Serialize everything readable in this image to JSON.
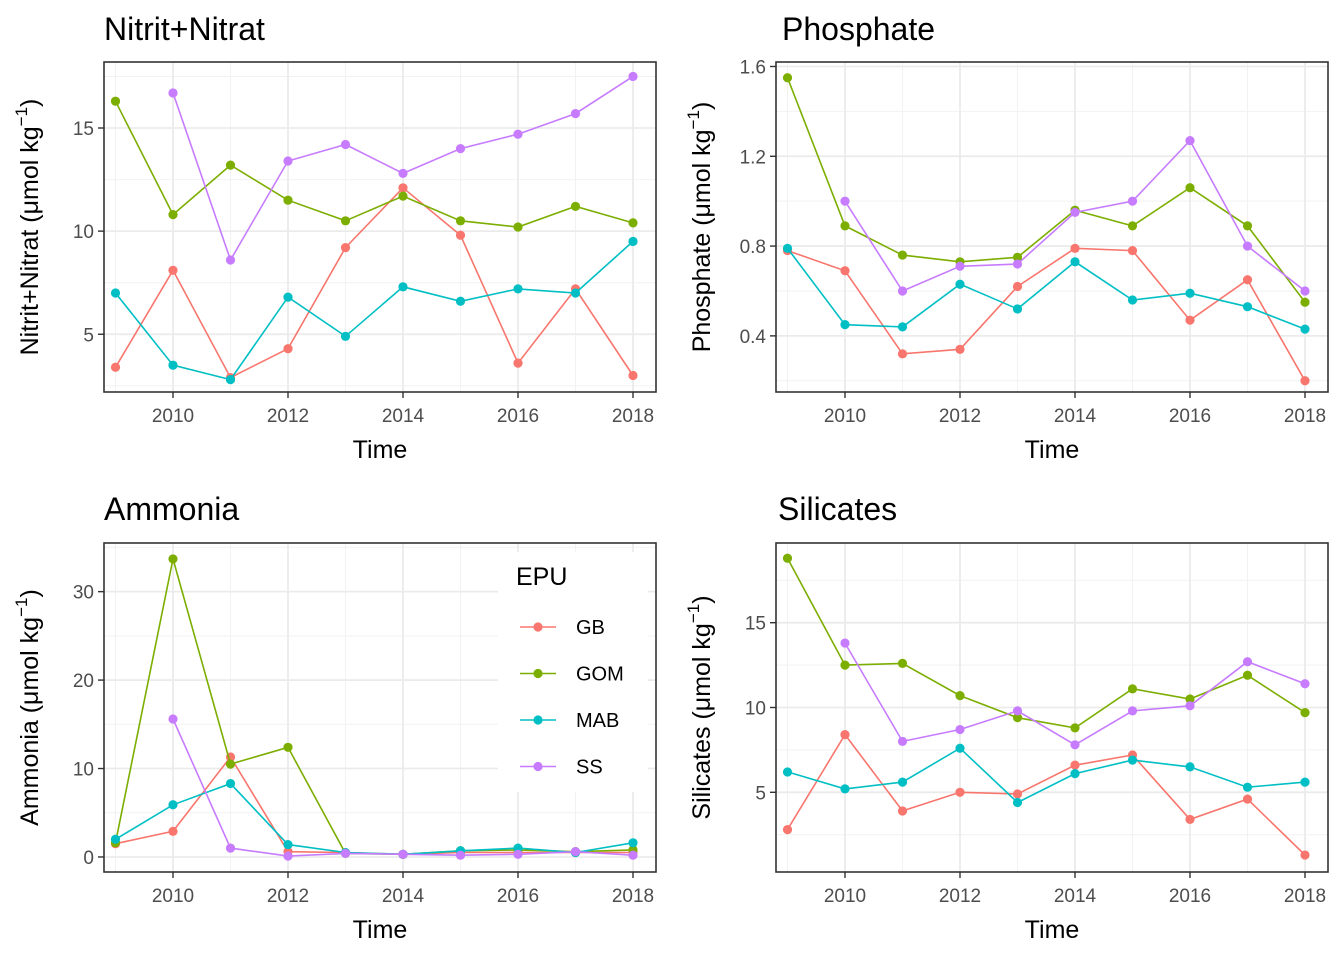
{
  "colors": {
    "GB": "#F8766D",
    "GOM": "#7CAE00",
    "MAB": "#00BFC4",
    "SS": "#C77CFF"
  },
  "legend": {
    "title": "EPU",
    "items": [
      "GB",
      "GOM",
      "MAB",
      "SS"
    ],
    "placement": "inside top-right of Ammonia panel"
  },
  "chart_data": [
    {
      "type": "line",
      "title": "Nitrit+Nitrat",
      "xlabel": "Time",
      "ylabel": "Nitrit+Nitrat (μmol kg⁻¹)",
      "xlim": [
        2008.8,
        2018.4
      ],
      "ylim": [
        2.2,
        18.2
      ],
      "xticks": [
        2010,
        2012,
        2014,
        2016,
        2018
      ],
      "yticks": [
        5,
        10,
        15
      ],
      "grid": true,
      "series": [
        {
          "name": "GB",
          "x": [
            2009,
            2010,
            2011,
            2012,
            2013,
            2014,
            2015,
            2016,
            2017,
            2018
          ],
          "values": [
            3.4,
            8.1,
            2.9,
            4.3,
            9.2,
            12.1,
            9.8,
            3.6,
            7.2,
            3.0
          ]
        },
        {
          "name": "GOM",
          "x": [
            2009,
            2010,
            2011,
            2012,
            2013,
            2014,
            2015,
            2016,
            2017,
            2018
          ],
          "values": [
            16.3,
            10.8,
            13.2,
            11.5,
            10.5,
            11.7,
            10.5,
            10.2,
            11.2,
            10.4
          ]
        },
        {
          "name": "MAB",
          "x": [
            2009,
            2010,
            2011,
            2012,
            2013,
            2014,
            2015,
            2016,
            2017,
            2018
          ],
          "values": [
            7.0,
            3.5,
            2.8,
            6.8,
            4.9,
            7.3,
            6.6,
            7.2,
            7.0,
            9.5
          ]
        },
        {
          "name": "SS",
          "x": [
            2010,
            2011,
            2012,
            2013,
            2014,
            2015,
            2016,
            2017,
            2018
          ],
          "values": [
            16.7,
            8.6,
            13.4,
            14.2,
            12.8,
            14.0,
            14.7,
            15.7,
            17.5
          ]
        }
      ]
    },
    {
      "type": "line",
      "title": "Phosphate",
      "xlabel": "Time",
      "ylabel": "Phosphate (μmol kg⁻¹)",
      "xlim": [
        2008.8,
        2018.4
      ],
      "ylim": [
        0.15,
        1.62
      ],
      "xticks": [
        2010,
        2012,
        2014,
        2016,
        2018
      ],
      "yticks": [
        0.4,
        0.8,
        1.2,
        1.6
      ],
      "yticklabels": [
        "0.4",
        "0.8",
        "1.2",
        "1.6"
      ],
      "grid": true,
      "series": [
        {
          "name": "GB",
          "x": [
            2009,
            2010,
            2011,
            2012,
            2013,
            2014,
            2015,
            2016,
            2017,
            2018
          ],
          "values": [
            0.78,
            0.69,
            0.32,
            0.34,
            0.62,
            0.79,
            0.78,
            0.47,
            0.65,
            0.2
          ]
        },
        {
          "name": "GOM",
          "x": [
            2009,
            2010,
            2011,
            2012,
            2013,
            2014,
            2015,
            2016,
            2017,
            2018
          ],
          "values": [
            1.55,
            0.89,
            0.76,
            0.73,
            0.75,
            0.96,
            0.89,
            1.06,
            0.89,
            0.55
          ]
        },
        {
          "name": "MAB",
          "x": [
            2009,
            2010,
            2011,
            2012,
            2013,
            2014,
            2015,
            2016,
            2017,
            2018
          ],
          "values": [
            0.79,
            0.45,
            0.44,
            0.63,
            0.52,
            0.73,
            0.56,
            0.59,
            0.53,
            0.43
          ]
        },
        {
          "name": "SS",
          "x": [
            2010,
            2011,
            2012,
            2013,
            2014,
            2015,
            2016,
            2017,
            2018
          ],
          "values": [
            1.0,
            0.6,
            0.71,
            0.72,
            0.95,
            1.0,
            1.27,
            0.8,
            0.6
          ]
        }
      ]
    },
    {
      "type": "line",
      "title": "Ammonia",
      "xlabel": "Time",
      "ylabel": "Ammonia (μmol kg⁻¹)",
      "xlim": [
        2008.8,
        2018.4
      ],
      "ylim": [
        -1.7,
        35.5
      ],
      "xticks": [
        2010,
        2012,
        2014,
        2016,
        2018
      ],
      "yticks": [
        0,
        10,
        20,
        30
      ],
      "grid": true,
      "series": [
        {
          "name": "GB",
          "x": [
            2009,
            2010,
            2011,
            2012,
            2013,
            2014,
            2015,
            2016,
            2017,
            2018
          ],
          "values": [
            1.5,
            2.9,
            11.3,
            0.6,
            0.5,
            0.3,
            0.5,
            0.5,
            0.5,
            0.5
          ]
        },
        {
          "name": "GOM",
          "x": [
            2009,
            2010,
            2011,
            2012,
            2013,
            2014,
            2015,
            2016,
            2017,
            2018
          ],
          "values": [
            1.6,
            33.7,
            10.5,
            12.4,
            0.4,
            0.3,
            0.7,
            0.8,
            0.6,
            0.8
          ]
        },
        {
          "name": "MAB",
          "x": [
            2009,
            2010,
            2011,
            2012,
            2013,
            2014,
            2015,
            2016,
            2017,
            2018
          ],
          "values": [
            2.0,
            5.9,
            8.3,
            1.4,
            0.5,
            0.3,
            0.7,
            1.0,
            0.5,
            1.6
          ]
        },
        {
          "name": "SS",
          "x": [
            2010,
            2011,
            2012,
            2013,
            2014,
            2015,
            2016,
            2017,
            2018
          ],
          "values": [
            15.6,
            1.0,
            0.1,
            0.4,
            0.3,
            0.2,
            0.3,
            0.6,
            0.2
          ]
        }
      ]
    },
    {
      "type": "line",
      "title": "Silicates",
      "xlabel": "Time",
      "ylabel": "Silicates (μmol kg⁻¹)",
      "xlim": [
        2008.8,
        2018.4
      ],
      "ylim": [
        0.3,
        19.7
      ],
      "xticks": [
        2010,
        2012,
        2014,
        2016,
        2018
      ],
      "yticks": [
        5,
        10,
        15
      ],
      "grid": true,
      "series": [
        {
          "name": "GB",
          "x": [
            2009,
            2010,
            2011,
            2012,
            2013,
            2014,
            2015,
            2016,
            2017,
            2018
          ],
          "values": [
            2.8,
            8.4,
            3.9,
            5.0,
            4.9,
            6.6,
            7.2,
            3.4,
            4.6,
            1.3
          ]
        },
        {
          "name": "GOM",
          "x": [
            2009,
            2010,
            2011,
            2012,
            2013,
            2014,
            2015,
            2016,
            2017,
            2018
          ],
          "values": [
            18.8,
            12.5,
            12.6,
            10.7,
            9.4,
            8.8,
            11.1,
            10.5,
            11.9,
            9.7
          ]
        },
        {
          "name": "MAB",
          "x": [
            2009,
            2010,
            2011,
            2012,
            2013,
            2014,
            2015,
            2016,
            2017,
            2018
          ],
          "values": [
            6.2,
            5.2,
            5.6,
            7.6,
            4.4,
            6.1,
            6.9,
            6.5,
            5.3,
            5.6
          ]
        },
        {
          "name": "SS",
          "x": [
            2010,
            2011,
            2012,
            2013,
            2014,
            2015,
            2016,
            2017,
            2018
          ],
          "values": [
            13.8,
            8.0,
            8.7,
            9.8,
            7.8,
            9.8,
            10.1,
            12.7,
            11.4
          ]
        }
      ]
    }
  ]
}
